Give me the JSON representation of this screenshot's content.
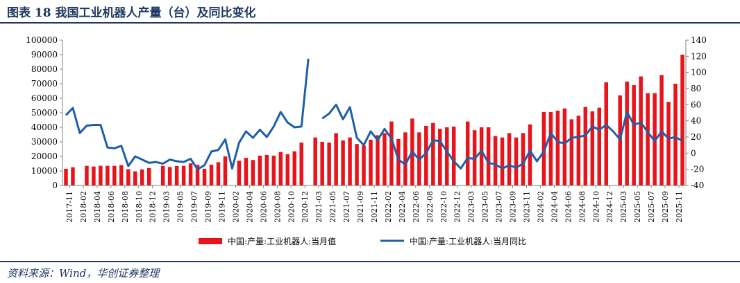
{
  "title": "图表 18 我国工业机器人产量（台）及同比变化",
  "source": "资料来源：Wind，华创证券整理",
  "chart_data": {
    "type": "bar",
    "legend_position": "bottom",
    "grid": false,
    "y_left": {
      "range": [
        0,
        100000
      ],
      "ticks": [
        "0",
        "10000",
        "20000",
        "30000",
        "40000",
        "50000",
        "60000",
        "70000",
        "80000",
        "90000",
        "100000"
      ]
    },
    "y_right": {
      "range": [
        -40,
        140
      ],
      "ticks": [
        "-40",
        "-20",
        "0",
        "20",
        "40",
        "60",
        "80",
        "100",
        "120",
        "140"
      ]
    },
    "x_tick_labels": [
      "2017-11",
      "2018-02",
      "2018-04",
      "2018-06",
      "2018-08",
      "2018-10",
      "2018-12",
      "2019-03",
      "2019-05",
      "2019-07",
      "2019-09",
      "2019-11",
      "2020-02",
      "2020-04",
      "2020-06",
      "2020-08",
      "2020-10",
      "2020-12",
      "2021-03",
      "2021-05",
      "2021-07",
      "2021-09",
      "2021-11",
      "2022-02",
      "2022-04",
      "2022-06",
      "2022-08",
      "2022-10",
      "2022-12",
      "2023-03",
      "2023-05",
      "2023-07",
      "2023-09",
      "2023-11",
      "2024-02",
      "2024-04",
      "2024-06",
      "2024-08",
      "2024-10",
      "2024-12",
      "2025-03",
      "2025-05",
      "2025-07",
      "2025-09",
      "2025-11"
    ],
    "series": [
      {
        "name": "中国:产量:工业机器人:当月值",
        "kind": "bar",
        "color": "#e8141b",
        "axis": "left",
        "values": [
          11500,
          12500,
          null,
          13500,
          13000,
          13500,
          13500,
          13500,
          14000,
          11200,
          9700,
          11000,
          12000,
          null,
          13500,
          12700,
          13400,
          13500,
          15200,
          14200,
          11500,
          14300,
          16000,
          20000,
          null,
          17000,
          19000,
          17500,
          20500,
          21000,
          20500,
          23000,
          21500,
          23500,
          29500,
          null,
          33000,
          30000,
          29500,
          36000,
          31000,
          33000,
          28500,
          27500,
          31500,
          34500,
          36000,
          44000,
          32000,
          36500,
          46000,
          36500,
          41000,
          43000,
          39000,
          40000,
          40500,
          null,
          44000,
          38000,
          40000,
          40000,
          34000,
          33000,
          36000,
          33000,
          36000,
          42000,
          null,
          50500,
          50500,
          51500,
          53000,
          45500,
          48000,
          54000,
          51000,
          53500,
          71000,
          null,
          62000,
          71500,
          69000,
          75000,
          63500,
          63500,
          76000,
          57500,
          70000,
          90000
        ]
      },
      {
        "name": "中国:产量:工业机器人:当月同比",
        "kind": "line",
        "color": "#1f5fa8",
        "axis": "right",
        "values": [
          47,
          56,
          25,
          34,
          35,
          35,
          7,
          6,
          9,
          -16,
          -4,
          -8,
          -12,
          -11,
          -13,
          -8,
          -10,
          -11,
          -7,
          -20,
          -15,
          2,
          4,
          17,
          -19,
          13,
          27,
          19,
          29,
          20,
          33,
          51,
          38,
          32,
          33,
          117,
          null,
          43,
          49,
          60,
          42,
          57,
          19,
          10,
          27,
          16,
          30,
          18,
          -8,
          -14,
          2,
          -8,
          0,
          16,
          15,
          2,
          -10,
          -19,
          -6,
          -7,
          3,
          -12,
          -14,
          -19,
          -15,
          -18,
          -13,
          3,
          -10,
          2,
          25,
          14,
          12,
          19,
          20,
          22,
          33,
          29,
          35,
          27,
          17,
          51,
          35,
          38,
          26,
          15,
          27,
          18,
          20,
          15
        ]
      }
    ]
  }
}
